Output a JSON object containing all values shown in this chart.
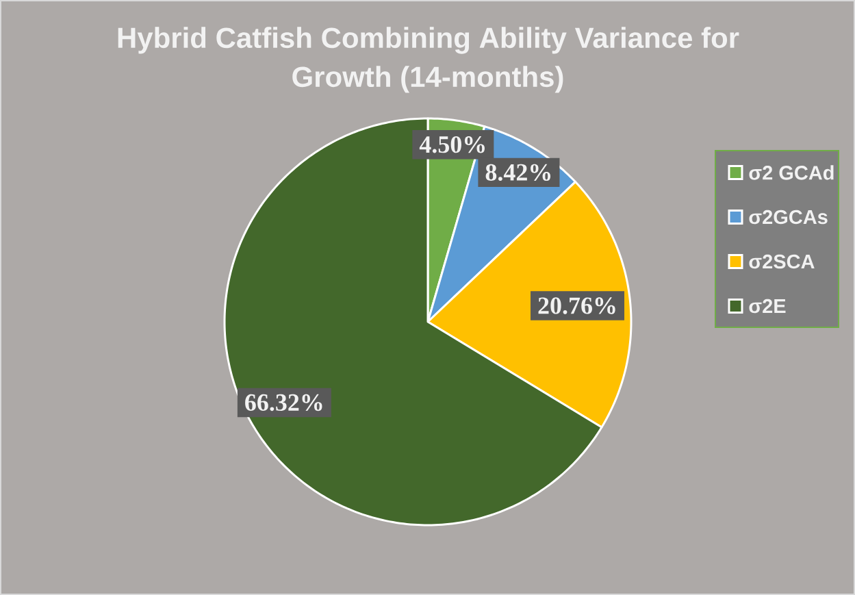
{
  "chart_data": {
    "type": "pie",
    "title": "Hybrid Catfish Combining Ability Variance for Growth (14-months)",
    "categories": [
      "σ2 GCAd",
      "σ2GCAs",
      "σ2SCA",
      "σ2E"
    ],
    "values": [
      4.5,
      8.42,
      20.76,
      66.32
    ],
    "colors": [
      "#70ad47",
      "#5b9bd5",
      "#ffc000",
      "#43682b"
    ],
    "value_labels": [
      "4.50%",
      "8.42%",
      "20.76%",
      "66.32%"
    ],
    "legend": "right"
  }
}
